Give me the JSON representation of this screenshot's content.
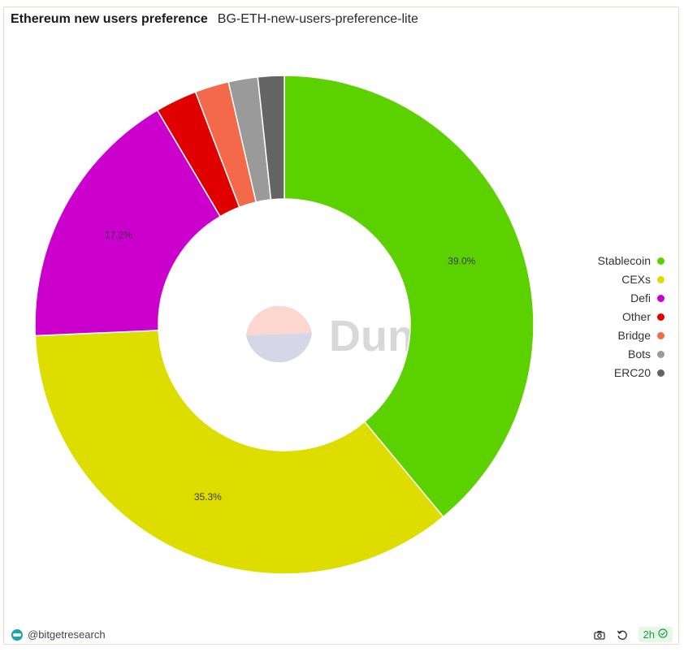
{
  "header": {
    "title": "Ethereum new users preference",
    "query_name": "BG-ETH-new-users-preference-lite"
  },
  "watermark": {
    "text": "Dune"
  },
  "chart_data": {
    "type": "pie",
    "donut": true,
    "title": "Ethereum new users preference",
    "legend_position": "right",
    "slices": [
      {
        "name": "Stablecoin",
        "value": 39.0,
        "label": "39.0%",
        "color": "#5bd100"
      },
      {
        "name": "CEXs",
        "value": 35.3,
        "label": "35.3%",
        "color": "#dddd00"
      },
      {
        "name": "Defi",
        "value": 17.2,
        "label": "17.2%",
        "color": "#cc00cc"
      },
      {
        "name": "Other",
        "value": 2.7,
        "label": "",
        "color": "#e00000"
      },
      {
        "name": "Bridge",
        "value": 2.2,
        "label": "",
        "color": "#f4694a"
      },
      {
        "name": "Bots",
        "value": 1.9,
        "label": "",
        "color": "#9a9a9a"
      },
      {
        "name": "ERC20",
        "value": 1.7,
        "label": "",
        "color": "#646464"
      }
    ]
  },
  "footer": {
    "author": "@bitgetresearch",
    "refresh_age": "2h",
    "icons": [
      "camera-icon",
      "refresh-icon",
      "check-circle-icon"
    ]
  }
}
